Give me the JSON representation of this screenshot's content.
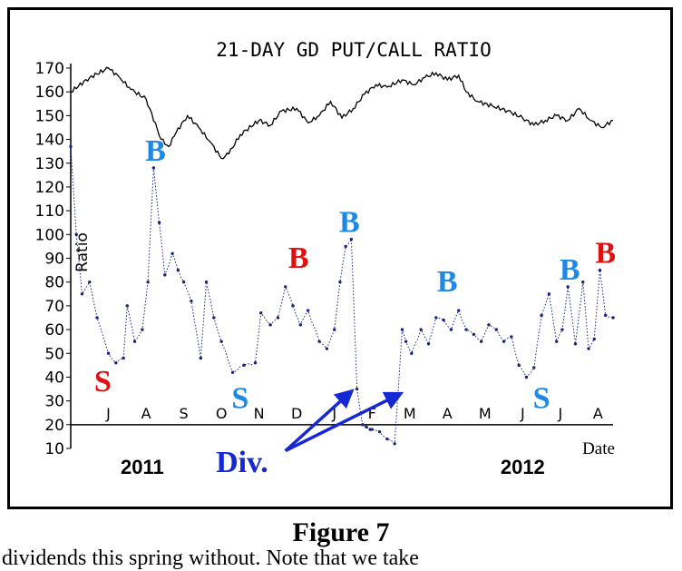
{
  "caption": "Figure 7",
  "cut_text": "dividends this spring without. Note that we take",
  "colors": {
    "blue": "#1e88e5",
    "red": "#e01010",
    "arrow": "#1428d4",
    "line": "#000000",
    "ratio": "#1a237e"
  },
  "chart_data": {
    "type": "line",
    "title": "21-DAY GD PUT/CALL RATIO",
    "xlabel": "Date",
    "ylabel": "Ratio",
    "ylim": [
      10,
      170
    ],
    "yticks": [
      10,
      20,
      30,
      40,
      50,
      60,
      70,
      80,
      90,
      100,
      110,
      120,
      130,
      140,
      150,
      160,
      170
    ],
    "month_ticks": [
      {
        "label": "J",
        "x": 1.0
      },
      {
        "label": "A",
        "x": 2.0
      },
      {
        "label": "S",
        "x": 3.0
      },
      {
        "label": "O",
        "x": 4.0
      },
      {
        "label": "N",
        "x": 5.0
      },
      {
        "label": "D",
        "x": 6.0
      },
      {
        "label": "J",
        "x": 7.0
      },
      {
        "label": "F",
        "x": 8.0
      },
      {
        "label": "M",
        "x": 9.0
      },
      {
        "label": "A",
        "x": 10.0
      },
      {
        "label": "M",
        "x": 11.0
      },
      {
        "label": "J",
        "x": 12.0
      },
      {
        "label": "J",
        "x": 13.0
      },
      {
        "label": "A",
        "x": 14.0
      }
    ],
    "years": [
      {
        "label": "2011",
        "x": 1.9
      },
      {
        "label": "2012",
        "x": 12.0
      }
    ],
    "price_series": {
      "name": "",
      "x": [
        0,
        0.5,
        1,
        1.3,
        1.6,
        2,
        2.4,
        2.6,
        2.8,
        3.1,
        3.4,
        3.7,
        4,
        4.2,
        4.5,
        5,
        5.3,
        5.6,
        6,
        6.3,
        6.6,
        6.9,
        7.2,
        7.5,
        7.8,
        8.1,
        8.4,
        8.8,
        9.1,
        9.4,
        9.7,
        10,
        10.3,
        10.5,
        10.8,
        11.2,
        11.6,
        12,
        12.3,
        12.6,
        12.9,
        13.2,
        13.5,
        13.8,
        14.1,
        14.4
      ],
      "values": [
        160,
        166,
        170,
        166,
        161,
        157,
        140,
        137,
        143,
        150,
        145,
        139,
        132,
        134,
        142,
        148,
        146,
        152,
        153,
        147,
        150,
        156,
        149,
        153,
        159,
        163,
        162,
        165,
        163,
        166,
        168,
        165,
        167,
        160,
        156,
        154,
        152,
        149,
        146,
        148,
        150,
        148,
        153,
        148,
        145,
        148
      ]
    },
    "ratio_series": {
      "name": "",
      "x": [
        0,
        0.15,
        0.3,
        0.5,
        0.7,
        1,
        1.2,
        1.4,
        1.5,
        1.7,
        1.9,
        2.05,
        2.2,
        2.35,
        2.5,
        2.7,
        2.85,
        3,
        3.2,
        3.45,
        3.6,
        3.8,
        4,
        4.3,
        4.6,
        4.9,
        5.05,
        5.3,
        5.5,
        5.7,
        5.9,
        6.1,
        6.3,
        6.6,
        6.8,
        7,
        7.15,
        7.3,
        7.45,
        7.6,
        7.75,
        7.85,
        7.95,
        8,
        8.2,
        8.4,
        8.6,
        8.8,
        8.9,
        9.05,
        9.3,
        9.5,
        9.7,
        9.9,
        10.1,
        10.3,
        10.5,
        10.7,
        10.9,
        11.1,
        11.3,
        11.5,
        11.7,
        11.9,
        12.1,
        12.3,
        12.5,
        12.7,
        12.9,
        13.05,
        13.2,
        13.4,
        13.6,
        13.75,
        13.9,
        14.05,
        14.2,
        14.4
      ],
      "values": [
        137,
        100,
        75,
        80,
        65,
        50,
        46,
        48,
        70,
        55,
        60,
        80,
        128,
        105,
        83,
        92,
        85,
        80,
        72,
        48,
        80,
        65,
        55,
        42,
        45,
        46,
        67,
        62,
        65,
        78,
        70,
        62,
        68,
        55,
        52,
        60,
        80,
        95,
        98,
        35,
        20,
        19,
        18,
        18,
        17,
        14,
        12,
        60,
        55,
        50,
        60,
        54,
        65,
        64,
        60,
        68,
        60,
        58,
        55,
        62,
        60,
        55,
        57,
        45,
        40,
        44,
        66,
        75,
        55,
        60,
        78,
        54,
        80,
        52,
        56,
        85,
        66,
        65
      ]
    },
    "annotations": [
      {
        "text": "B",
        "color": "blue",
        "x": 2.25,
        "y": 131
      },
      {
        "text": "B",
        "color": "red",
        "x": 6.05,
        "y": 86
      },
      {
        "text": "B",
        "color": "blue",
        "x": 7.4,
        "y": 101
      },
      {
        "text": "B",
        "color": "blue",
        "x": 10.0,
        "y": 76
      },
      {
        "text": "B",
        "color": "blue",
        "x": 13.25,
        "y": 81
      },
      {
        "text": "B",
        "color": "red",
        "x": 14.2,
        "y": 88
      },
      {
        "text": "S",
        "color": "red",
        "x": 0.85,
        "y": 34
      },
      {
        "text": "S",
        "color": "blue",
        "x": 4.5,
        "y": 27
      },
      {
        "text": "S",
        "color": "blue",
        "x": 12.5,
        "y": 27
      }
    ],
    "arrows": {
      "label": "Div.",
      "label_pos": {
        "x": 4.55,
        "y": 7
      },
      "origin": {
        "x": 5.7,
        "y": 9
      },
      "targets": [
        {
          "x": 7.45,
          "y": 34
        },
        {
          "x": 8.75,
          "y": 33
        }
      ]
    }
  }
}
